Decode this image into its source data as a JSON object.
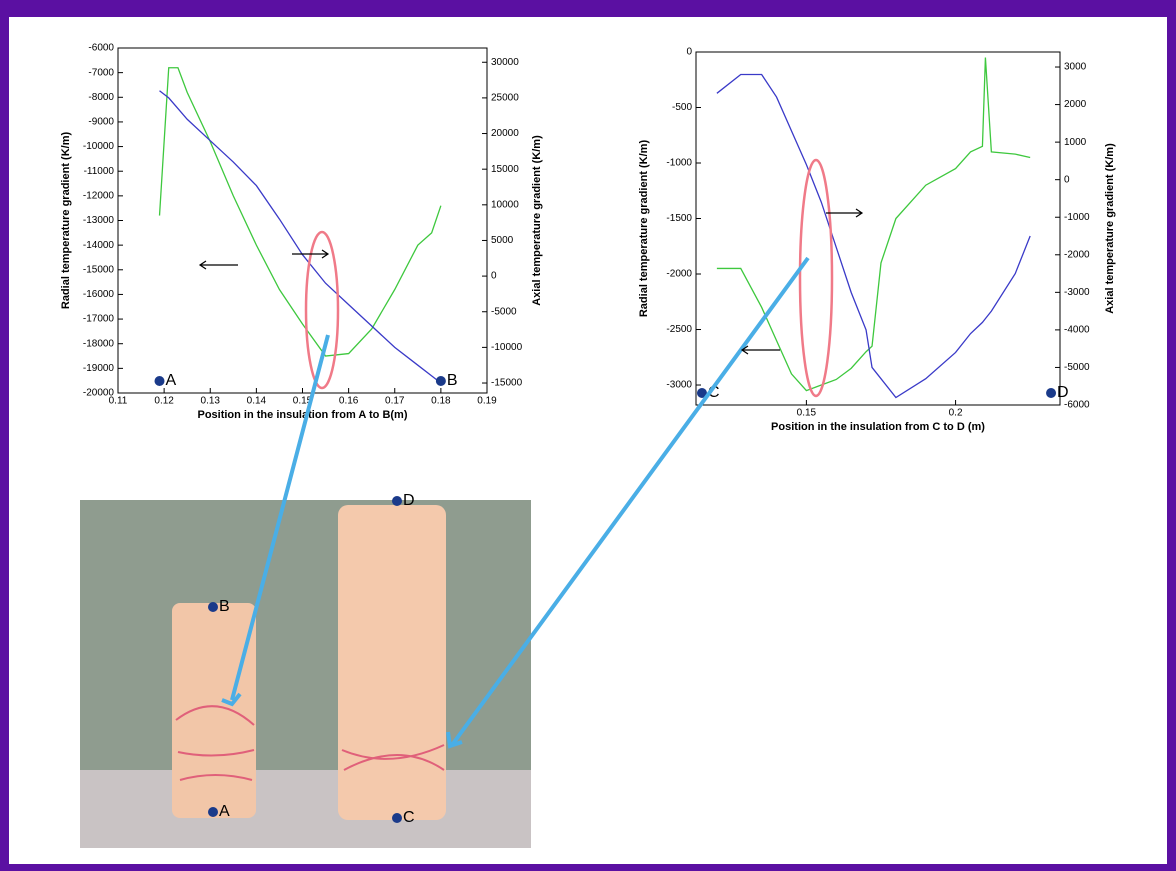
{
  "chart_data": [
    {
      "type": "line",
      "x_label": "Position in the insulation from A to B(m)",
      "y_label": "Radial temperature gradient (K/m)",
      "y2_label": "Axial temperature gradient (K/m)",
      "xlim": [
        0.11,
        0.19
      ],
      "xticks": [
        0.11,
        0.12,
        0.13,
        0.14,
        0.15,
        0.16,
        0.17,
        0.18,
        0.19
      ],
      "ylim": [
        -20000,
        -6000
      ],
      "yticks": [
        -20000,
        -19000,
        -18000,
        -17000,
        -16000,
        -15000,
        -14000,
        -13000,
        -12000,
        -11000,
        -10000,
        -9000,
        -8000,
        -7000,
        -6000
      ],
      "y2lim": [
        -16400,
        32000
      ],
      "y2ticks": [
        -15000,
        -10000,
        -5000,
        0,
        5000,
        10000,
        15000,
        20000,
        25000,
        30000
      ],
      "x": [
        0.119,
        0.121,
        0.123,
        0.125,
        0.13,
        0.135,
        0.14,
        0.145,
        0.15,
        0.155,
        0.16,
        0.165,
        0.17,
        0.175,
        0.178,
        0.18
      ],
      "series": [
        {
          "color": "#3ec83e",
          "values": [
            -12800,
            -6800,
            -6800,
            -7800,
            -9800,
            -12000,
            -14000,
            -15800,
            -17200,
            -18500,
            -18400,
            -17400,
            -15800,
            -14000,
            -13500,
            -12400
          ]
        },
        {
          "color": "#3a3ac8",
          "axis": "y2",
          "values": [
            26000,
            25000,
            23500,
            22000,
            19000,
            16000,
            12700,
            8000,
            3000,
            -1000,
            -4000,
            -7000,
            -10000,
            -12500,
            -14000,
            -15000
          ]
        }
      ],
      "annotations": [
        "A",
        "B"
      ]
    },
    {
      "type": "line",
      "x_label": "Position in the insulation from C to D (m)",
      "y_label": "Radial temperature gradient (K/m)",
      "y2_label": "Axial temperature gradient (K/m)",
      "xlim": [
        0.113,
        0.235
      ],
      "xticks": [
        0.15,
        0.2
      ],
      "ylim": [
        -3180,
        0
      ],
      "yticks": [
        -3000,
        -2500,
        -2000,
        -1500,
        -1000,
        -500,
        0
      ],
      "y2lim": [
        -6000,
        3400
      ],
      "y2ticks": [
        -6000,
        -5000,
        -4000,
        -3000,
        -2000,
        -1000,
        0,
        1000,
        2000,
        3000
      ],
      "x": [
        0.12,
        0.128,
        0.135,
        0.14,
        0.145,
        0.15,
        0.155,
        0.16,
        0.165,
        0.17,
        0.172,
        0.175,
        0.18,
        0.19,
        0.2,
        0.205,
        0.209,
        0.21,
        0.212,
        0.22,
        0.225
      ],
      "series": [
        {
          "color": "#3ec83e",
          "values": [
            -1950,
            -1950,
            -2300,
            -2600,
            -2900,
            -3050,
            -3000,
            -2950,
            -2850,
            -2700,
            -2650,
            -1900,
            -1500,
            -1200,
            -1050,
            -900,
            -850,
            -50,
            -900,
            -920,
            -950
          ]
        },
        {
          "color": "#3a3ac8",
          "axis": "y2",
          "values": [
            2300,
            2800,
            2800,
            2200,
            1300,
            400,
            -600,
            -1800,
            -3000,
            -4000,
            -5000,
            -5300,
            -5800,
            -5300,
            -4600,
            -4100,
            -3800,
            -3700,
            -3500,
            -2500,
            -1500
          ]
        }
      ],
      "annotations": [
        "C",
        "D"
      ]
    }
  ],
  "photo": {
    "labels": [
      "B",
      "A",
      "D",
      "C"
    ]
  }
}
